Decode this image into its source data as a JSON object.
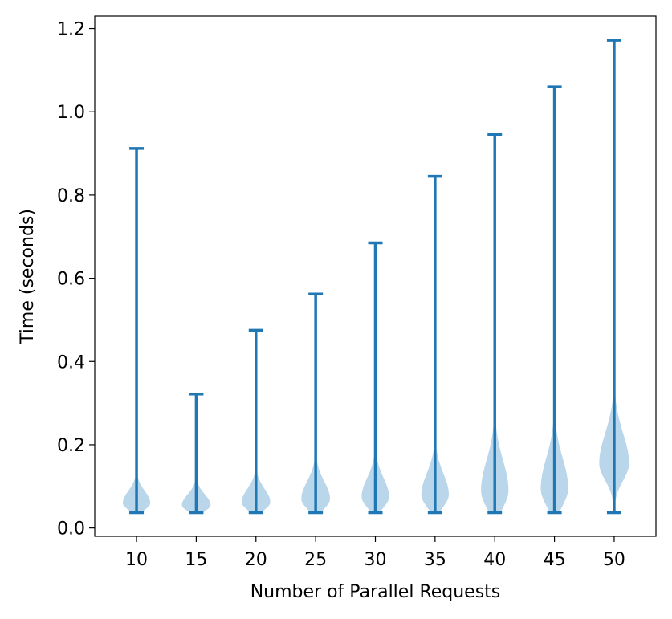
{
  "chart_data": {
    "type": "violin",
    "xlabel": "Number of Parallel Requests",
    "ylabel": "Time (seconds)",
    "categories": [
      "10",
      "15",
      "20",
      "25",
      "30",
      "35",
      "40",
      "45",
      "50"
    ],
    "ylim": [
      -0.02,
      1.23
    ],
    "yticks": [
      "0.0",
      "0.2",
      "0.4",
      "0.6",
      "0.8",
      "1.0",
      "1.2"
    ],
    "grid": false,
    "violins": [
      {
        "x": "10",
        "min": 0.037,
        "max": 0.912,
        "mode": 0.06,
        "peak_halfwidth": 0.23,
        "spread": 0.018
      },
      {
        "x": "15",
        "min": 0.037,
        "max": 0.322,
        "mode": 0.055,
        "peak_halfwidth": 0.24,
        "spread": 0.016
      },
      {
        "x": "20",
        "min": 0.037,
        "max": 0.475,
        "mode": 0.062,
        "peak_halfwidth": 0.24,
        "spread": 0.02
      },
      {
        "x": "25",
        "min": 0.037,
        "max": 0.562,
        "mode": 0.07,
        "peak_halfwidth": 0.24,
        "spread": 0.026
      },
      {
        "x": "30",
        "min": 0.037,
        "max": 0.685,
        "mode": 0.075,
        "peak_halfwidth": 0.23,
        "spread": 0.028
      },
      {
        "x": "35",
        "min": 0.037,
        "max": 0.845,
        "mode": 0.08,
        "peak_halfwidth": 0.23,
        "spread": 0.032
      },
      {
        "x": "40",
        "min": 0.037,
        "max": 0.945,
        "mode": 0.09,
        "peak_halfwidth": 0.23,
        "spread": 0.045
      },
      {
        "x": "45",
        "min": 0.037,
        "max": 1.06,
        "mode": 0.095,
        "peak_halfwidth": 0.23,
        "spread": 0.045
      },
      {
        "x": "50",
        "min": 0.037,
        "max": 1.172,
        "mode": 0.155,
        "peak_halfwidth": 0.25,
        "spread": 0.045
      }
    ],
    "colors": {
      "line": "#1f77b4",
      "fill": "#bad6ea"
    }
  }
}
